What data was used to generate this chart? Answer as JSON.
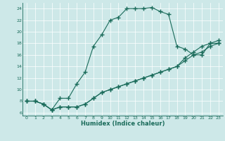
{
  "xlabel": "Humidex (Indice chaleur)",
  "background_color": "#cde8e8",
  "line_color": "#1a6b5a",
  "xlim": [
    -0.5,
    23.5
  ],
  "ylim": [
    5.5,
    25.0
  ],
  "yticks": [
    6,
    8,
    10,
    12,
    14,
    16,
    18,
    20,
    22,
    24
  ],
  "xticks": [
    0,
    1,
    2,
    3,
    4,
    5,
    6,
    7,
    8,
    9,
    10,
    11,
    12,
    13,
    14,
    15,
    16,
    17,
    18,
    19,
    20,
    21,
    22,
    23
  ],
  "line1_x": [
    0,
    1,
    2,
    3,
    4,
    5,
    6,
    7,
    8,
    9,
    10,
    11,
    12,
    13,
    14,
    15,
    16,
    17,
    18,
    19,
    20,
    21,
    22,
    23
  ],
  "line1_y": [
    8,
    8,
    7.5,
    6.5,
    8.5,
    8.5,
    11,
    13,
    17.5,
    19.5,
    22,
    22.5,
    24,
    24,
    24,
    24.2,
    23.5,
    23,
    17.5,
    17,
    16,
    16,
    18,
    18
  ],
  "line2_x": [
    0,
    1,
    2,
    3,
    4,
    5,
    6,
    7,
    8,
    9,
    10,
    11,
    12,
    13,
    14,
    15,
    16,
    17,
    18,
    19,
    20,
    21,
    22,
    23
  ],
  "line2_y": [
    8,
    8,
    7.5,
    6.5,
    7,
    7,
    7,
    7.5,
    8.5,
    9.5,
    10,
    10.5,
    11,
    11.5,
    12,
    12.5,
    13,
    13.5,
    14,
    15,
    16,
    16.5,
    17.5,
    18
  ],
  "line3_x": [
    0,
    1,
    2,
    3,
    4,
    5,
    6,
    7,
    8,
    9,
    10,
    11,
    12,
    13,
    14,
    15,
    16,
    17,
    18,
    19,
    20,
    21,
    22,
    23
  ],
  "line3_y": [
    8,
    8,
    7.5,
    6.5,
    7,
    7,
    7,
    7.5,
    8.5,
    9.5,
    10,
    10.5,
    11,
    11.5,
    12,
    12.5,
    13,
    13.5,
    14,
    15.5,
    16.5,
    17.5,
    18,
    18.5
  ],
  "grid_color": "#ffffff",
  "marker": "+",
  "markersize": 4,
  "linewidth": 0.8
}
